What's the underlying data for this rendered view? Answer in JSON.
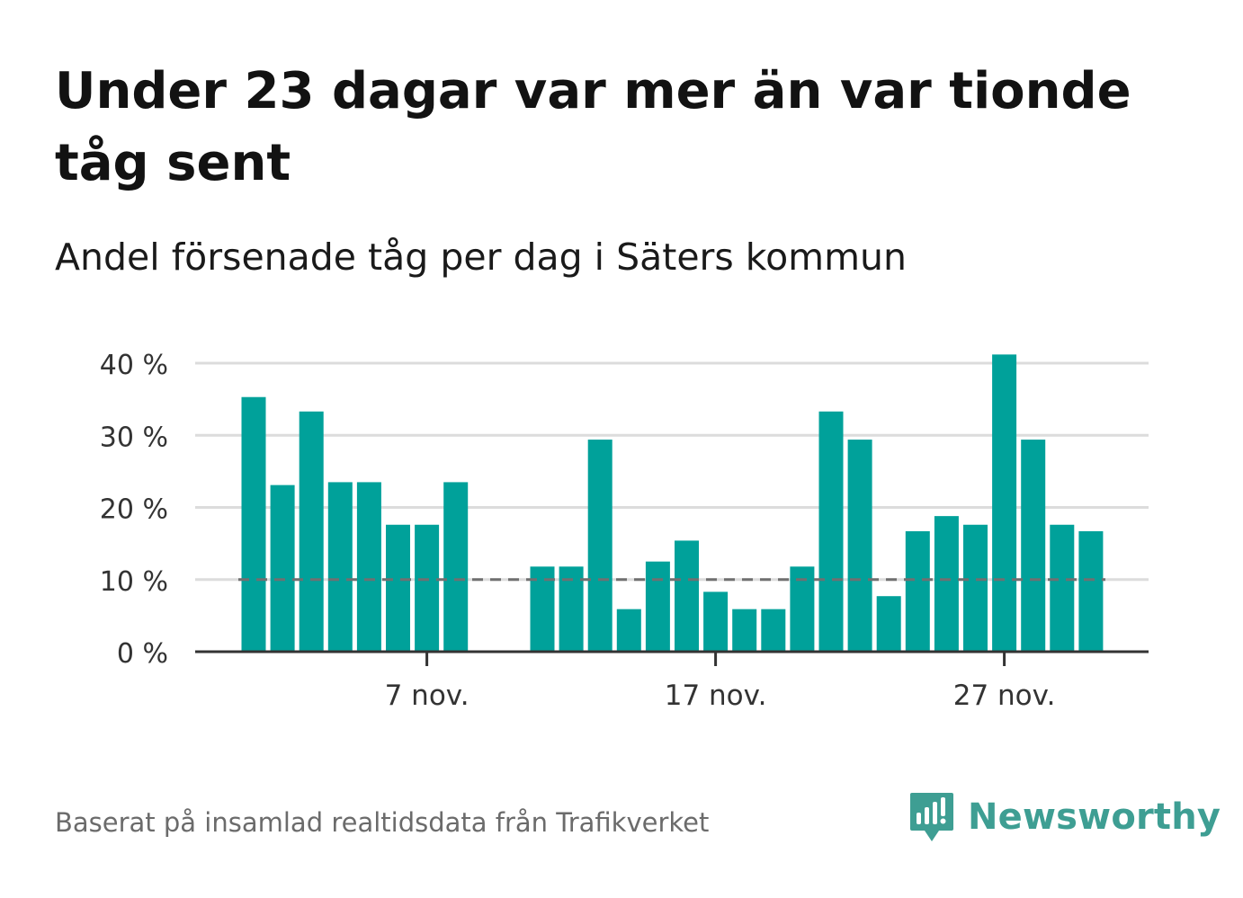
{
  "header": {
    "title": "Under 23 dagar var mer än var tionde tåg sent",
    "subtitle": "Andel försenade tåg per dag i Säters kommun"
  },
  "footer": {
    "source": "Baserat på insamlad realtidsdata från Trafikverket",
    "brand": "Newsworthy",
    "brand_color": "#3e9e93",
    "brand_icon": "bar-chart-speech-bubble-icon"
  },
  "colors": {
    "bar": "#00a19a",
    "grid": "#dcdcdc",
    "axis": "#333333",
    "reference_line": "#707070"
  },
  "chart_data": {
    "type": "bar",
    "x_unit": "day",
    "x": [
      "2023-11-01",
      "2023-11-02",
      "2023-11-03",
      "2023-11-04",
      "2023-11-05",
      "2023-11-06",
      "2023-11-07",
      "2023-11-08",
      "2023-11-09",
      "2023-11-10",
      "2023-11-11",
      "2023-11-12",
      "2023-11-13",
      "2023-11-14",
      "2023-11-15",
      "2023-11-16",
      "2023-11-17",
      "2023-11-18",
      "2023-11-19",
      "2023-11-20",
      "2023-11-21",
      "2023-11-22",
      "2023-11-23",
      "2023-11-24",
      "2023-11-25",
      "2023-11-26",
      "2023-11-27",
      "2023-11-28",
      "2023-11-29",
      "2023-11-30"
    ],
    "values": [
      35.3,
      23.1,
      33.3,
      23.5,
      23.5,
      17.6,
      17.6,
      23.5,
      null,
      null,
      11.8,
      11.8,
      29.4,
      5.9,
      12.5,
      15.4,
      8.3,
      5.9,
      5.9,
      11.8,
      33.3,
      29.4,
      7.7,
      16.7,
      18.8,
      17.6,
      41.2,
      29.4,
      17.6,
      16.7
    ],
    "ylim": [
      0,
      40
    ],
    "yticks": [
      0,
      10,
      20,
      30,
      40
    ],
    "ytick_labels": [
      "0 %",
      "10 %",
      "20 %",
      "30 %",
      "40 %"
    ],
    "xticks": [
      {
        "x": "2023-11-07",
        "label": "7 nov."
      },
      {
        "x": "2023-11-17",
        "label": "17 nov."
      },
      {
        "x": "2023-11-27",
        "label": "27 nov."
      }
    ],
    "reference_line": {
      "y": 10,
      "style": "dashed"
    },
    "grid": true,
    "xlabel": "",
    "ylabel": ""
  }
}
